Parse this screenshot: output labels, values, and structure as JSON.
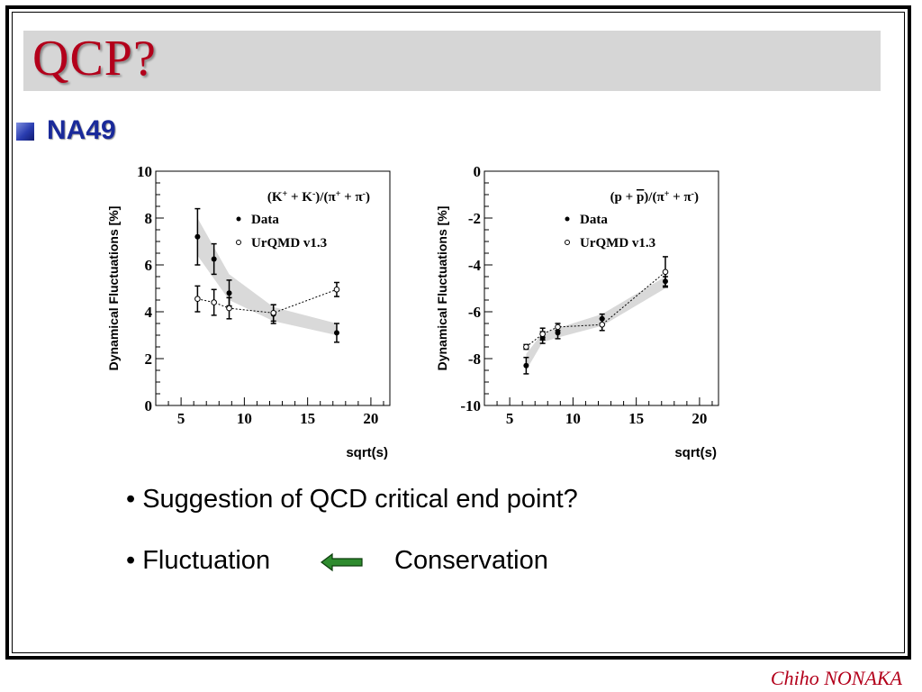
{
  "slide": {
    "title": "QCP?",
    "section_heading": "NA49",
    "bullets": [
      "• Suggestion of QCD critical end point?",
      "• Fluctuation",
      "Conservation"
    ],
    "credit": "Chiho NONAKA"
  },
  "colors": {
    "title": "#b3001b",
    "heading": "#1a2a9a",
    "arrow": "#2e8b2e",
    "band": "#d9d9d9"
  },
  "chart_data": [
    {
      "type": "scatter",
      "title": "(K+ + K-)/(π+ + π-)",
      "title_parts": [
        "(K",
        "+",
        " + K",
        "-",
        ")/(π",
        "+",
        " + π",
        "-",
        ")"
      ],
      "xlabel": "sqrt(s)",
      "ylabel": "Dynamical Fluctuations [%]",
      "xlim": [
        3,
        21.5
      ],
      "ylim": [
        0,
        10
      ],
      "xticks": [
        5,
        10,
        15,
        20
      ],
      "yticks": [
        0,
        2,
        4,
        6,
        8,
        10
      ],
      "legend": {
        "position": "top-right",
        "entries": [
          "Data",
          "UrQMD v1.3"
        ]
      },
      "series": [
        {
          "name": "Data",
          "marker": "filled-circle",
          "x": [
            6.3,
            7.6,
            8.8,
            12.3,
            17.3
          ],
          "y": [
            7.2,
            6.25,
            4.8,
            3.9,
            3.1
          ],
          "err": [
            1.2,
            0.65,
            0.55,
            0.4,
            0.4
          ]
        },
        {
          "name": "UrQMD v1.3",
          "marker": "open-circle",
          "line": "dotted",
          "x": [
            6.3,
            7.6,
            8.8,
            12.3,
            17.3
          ],
          "y": [
            4.55,
            4.4,
            4.15,
            3.95,
            4.95
          ],
          "err": [
            0.55,
            0.55,
            0.45,
            0.35,
            0.3
          ]
        }
      ],
      "band": {
        "x": [
          6.3,
          8.8,
          12.3,
          17.3
        ],
        "ylow": [
          6.4,
          4.5,
          3.6,
          3.0
        ],
        "yhigh": [
          8.0,
          5.6,
          4.2,
          3.5
        ]
      }
    },
    {
      "type": "scatter",
      "title": "(p + p̄)/(π+ + π-)",
      "title_parts": [
        "(p + ",
        "p",
        ")/(π",
        "+",
        " + π",
        "-",
        ")"
      ],
      "xlabel": "sqrt(s)",
      "ylabel": "Dynamical Fluctuations [%]",
      "xlim": [
        3,
        21.5
      ],
      "ylim": [
        -10,
        0
      ],
      "xticks": [
        5,
        10,
        15,
        20
      ],
      "yticks": [
        -10,
        -8,
        -6,
        -4,
        -2,
        0
      ],
      "legend": {
        "position": "top-right",
        "entries": [
          "Data",
          "UrQMD v1.3"
        ]
      },
      "series": [
        {
          "name": "Data",
          "marker": "filled-circle",
          "x": [
            6.3,
            7.6,
            8.8,
            12.3,
            17.3
          ],
          "y": [
            -8.3,
            -7.1,
            -6.9,
            -6.3,
            -4.7
          ],
          "err": [
            0.35,
            0.25,
            0.25,
            0.2,
            0.2
          ]
        },
        {
          "name": "UrQMD v1.3",
          "marker": "open-circle",
          "line": "dotted",
          "x": [
            6.3,
            7.6,
            8.8,
            12.3,
            17.3
          ],
          "y": [
            -7.5,
            -6.95,
            -6.65,
            -6.55,
            -4.3
          ],
          "err": [
            0.1,
            0.25,
            0.15,
            0.25,
            0.65
          ]
        }
      ],
      "band": {
        "x": [
          6.3,
          7.6,
          8.8,
          12.3,
          17.3
        ],
        "ylow": [
          -8.5,
          -7.3,
          -7.1,
          -6.6,
          -5.0
        ],
        "yhigh": [
          -7.8,
          -6.9,
          -6.7,
          -6.1,
          -4.5
        ]
      }
    }
  ]
}
